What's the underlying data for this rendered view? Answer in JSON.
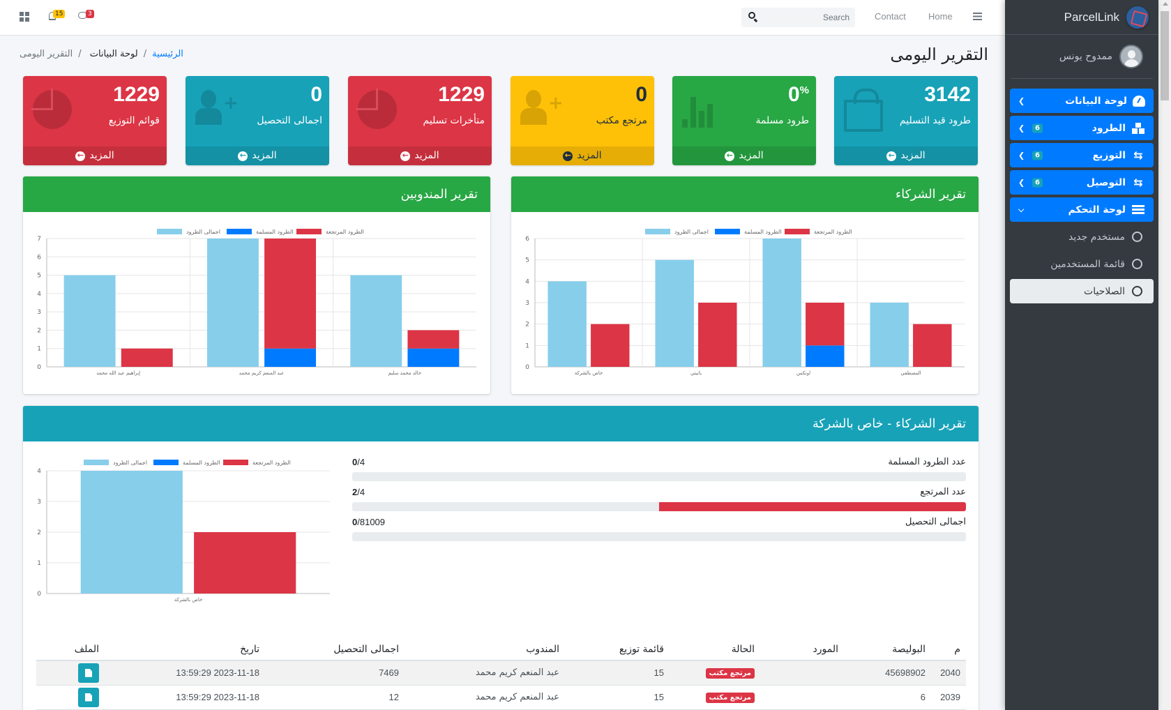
{
  "topbar": {
    "notifications_count": "15",
    "messages_count": "3",
    "search_placeholder": "Search",
    "links": [
      "Contact",
      "Home"
    ]
  },
  "sidebar": {
    "brand": "ParcelLink",
    "user_name": "ممدوح يونس",
    "items": [
      {
        "label": "لوحة البيانات",
        "icon": "dashboard-gauge-icon",
        "badge": null,
        "expanded": false
      },
      {
        "label": "الطرود",
        "icon": "boxes-icon",
        "badge": "6",
        "expanded": false
      },
      {
        "label": "التوزيع",
        "icon": "retweet-icon",
        "badge": "6",
        "expanded": false
      },
      {
        "label": "التوصيل",
        "icon": "retweet-icon",
        "badge": "6",
        "expanded": false
      },
      {
        "label": "لوحة التحكم",
        "icon": "list-icon",
        "badge": null,
        "expanded": true
      }
    ],
    "sub_items": [
      {
        "label": "مستخدم جديد",
        "active": false
      },
      {
        "label": "قائمة المستخدمين",
        "active": false
      },
      {
        "label": "الصلاحيات",
        "active": true
      }
    ]
  },
  "page": {
    "title": "التقرير اليومى",
    "breadcrumb": [
      "الرئيسية",
      "لوحة البيانات",
      "التقرير اليومى"
    ]
  },
  "stat_boxes": [
    {
      "value": "3142",
      "suffix": "",
      "label": "طرود قيد التسليم",
      "more": "المزيد",
      "color": "#17a2b8",
      "icon": "shopping-bag-icon"
    },
    {
      "value": "0",
      "suffix": "%",
      "label": "طرود مسلمة",
      "more": "المزيد",
      "color": "#28a745",
      "icon": "bar-chart-icon"
    },
    {
      "value": "0",
      "suffix": "",
      "label": "مرتجع مكتب",
      "more": "المزيد",
      "color": "#ffc107",
      "icon": "user-plus-icon"
    },
    {
      "value": "1229",
      "suffix": "",
      "label": "متأخرات تسليم",
      "more": "المزيد",
      "color": "#dc3545",
      "icon": "pie-chart-icon"
    },
    {
      "value": "0",
      "suffix": "",
      "label": "اجمالى التحصيل",
      "more": "المزيد",
      "color": "#17a2b8",
      "icon": "user-plus-icon"
    },
    {
      "value": "1229",
      "suffix": "",
      "label": "قوائم التوزيع",
      "more": "المزيد",
      "color": "#dc3545",
      "icon": "pie-chart-icon"
    }
  ],
  "cards": {
    "partners_title": "تقرير الشركاء",
    "delegates_title": "تقرير المندوبين",
    "company_title": "تقرير الشركاء - خاص بالشركة"
  },
  "progress": [
    {
      "label": "عدد الطرود المسلمة",
      "current": "0",
      "total": "4",
      "fraction": 0
    },
    {
      "label": "عدد المرتجع",
      "current": "2",
      "total": "4",
      "fraction": 0.5
    },
    {
      "label": "اجمالى التحصيل",
      "current": "0",
      "total": "81009",
      "fraction": 0
    }
  ],
  "table": {
    "headers": [
      "م",
      "البوليصة",
      "المورد",
      "الحالة",
      "قائمة توزيع",
      "المندوب",
      "اجمالى التحصيل",
      "تاريخ",
      "الملف"
    ],
    "rows": [
      {
        "id": "2040",
        "policy": "45698902",
        "supplier": "",
        "status": "مرتجع مكتب",
        "dist_list": "15",
        "delegate": "عبد المنعم كريم محمد",
        "total": "7469",
        "date": "2023-11-18 13:59:29"
      },
      {
        "id": "2039",
        "policy": "6",
        "supplier": "",
        "status": "مرتجع مكتب",
        "dist_list": "15",
        "delegate": "عبد المنعم كريم محمد",
        "total": "12",
        "date": "2023-11-18 13:59:29"
      }
    ]
  },
  "chart_data": [
    {
      "type": "bar",
      "title": "تقرير المندوبين",
      "categories": [
        "إبراهيم عبد الله محمد",
        "عبد المنعم كريم محمد",
        "خالد محمد سليم"
      ],
      "series": [
        {
          "name": "اجمالى الطرود",
          "color": "#87ceeb",
          "stack": "a",
          "values": [
            5,
            7,
            5
          ]
        },
        {
          "name": "الطرود المسلمة",
          "color": "#007bff",
          "stack": "b",
          "values": [
            0,
            1,
            1
          ]
        },
        {
          "name": "الطرود المرتجعة",
          "color": "#dc3545",
          "stack": "b",
          "values": [
            1,
            6,
            1
          ]
        }
      ],
      "ylim": [
        0,
        7
      ],
      "yticks": [
        0,
        1,
        2,
        3,
        4,
        5,
        6,
        7
      ],
      "legend": "top",
      "grid": true
    },
    {
      "type": "bar",
      "title": "تقرير الشركاء",
      "categories": [
        "خاص بالشركة",
        "باتيتي",
        "اوتكس",
        "المصطفى"
      ],
      "series": [
        {
          "name": "اجمالى الطرود",
          "color": "#87ceeb",
          "stack": "a",
          "values": [
            4,
            5,
            6,
            3
          ]
        },
        {
          "name": "الطرود المسلمة",
          "color": "#007bff",
          "stack": "b",
          "values": [
            0,
            0,
            1,
            0
          ]
        },
        {
          "name": "الطرود المرتجعة",
          "color": "#dc3545",
          "stack": "b",
          "values": [
            2,
            3,
            2,
            2
          ]
        }
      ],
      "ylim": [
        0,
        6
      ],
      "yticks": [
        0,
        1,
        2,
        3,
        4,
        5,
        6
      ],
      "legend": "top",
      "grid": true
    },
    {
      "type": "bar",
      "title": "تقرير الشركاء - خاص بالشركة",
      "categories": [
        "خاص بالشركة"
      ],
      "series": [
        {
          "name": "اجمالى الطرود",
          "color": "#87ceeb",
          "stack": "a",
          "values": [
            4
          ]
        },
        {
          "name": "الطرود المسلمة",
          "color": "#007bff",
          "stack": "b",
          "values": [
            0
          ]
        },
        {
          "name": "الطرود المرتجعة",
          "color": "#dc3545",
          "stack": "b",
          "values": [
            2
          ]
        }
      ],
      "ylim": [
        0,
        4
      ],
      "yticks": [
        0,
        1,
        2,
        3,
        4
      ],
      "legend": "top",
      "grid": true
    }
  ]
}
